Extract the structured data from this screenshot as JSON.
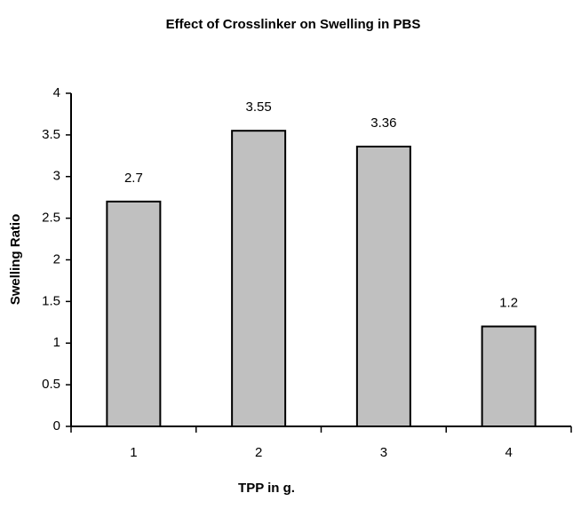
{
  "chart_data": {
    "type": "bar",
    "title": "Effect of Crosslinker on Swelling in PBS",
    "x_label": "TPP in g.",
    "y_label": "Swelling Ratio",
    "categories": [
      "1",
      "2",
      "3",
      "4"
    ],
    "values": [
      2.7,
      3.55,
      3.36,
      1.2
    ],
    "color": "#c0c0c0",
    "ylim": [
      0,
      4
    ],
    "yticks": [
      0,
      0.5,
      1,
      1.5,
      2,
      2.5,
      3,
      3.5,
      4
    ],
    "grid": false
  }
}
